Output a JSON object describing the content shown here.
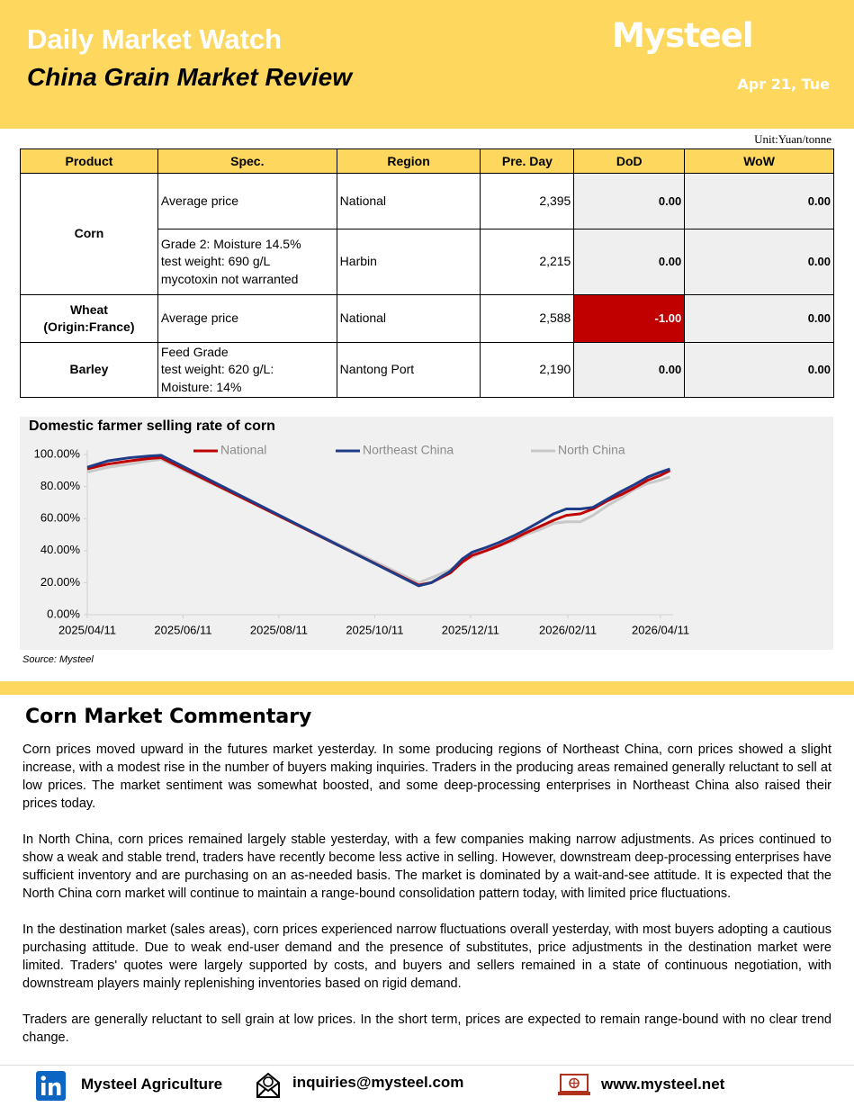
{
  "header": {
    "title": "Daily Market Watch",
    "subtitle": "China Grain Market Review",
    "brand": "Mysteel",
    "date": "Apr 21, Tue"
  },
  "table": {
    "unit": "Unit:Yuan/tonne",
    "columns": [
      "Product",
      "Spec.",
      "Region",
      "Pre. Day",
      "DoD",
      "WoW"
    ],
    "groups": [
      {
        "product": [
          "Corn"
        ],
        "rows": [
          {
            "spec": [
              "Average price"
            ],
            "region": "National",
            "pre_day": "2,395",
            "dod": "0.00",
            "wow": "0.00"
          },
          {
            "spec": [
              "Grade 2: Moisture 14.5%",
              "test weight: 690 g/L",
              "mycotoxin not warranted"
            ],
            "region": "Harbin",
            "pre_day": "2,215",
            "dod": "0.00",
            "wow": "0.00"
          }
        ]
      },
      {
        "product": [
          "Wheat",
          "(Origin:France)"
        ],
        "rows": [
          {
            "spec": [
              "Average price"
            ],
            "region": "National",
            "pre_day": "2,588",
            "dod": "-1.00",
            "wow": "0.00",
            "dod_color": "#c00000"
          }
        ]
      },
      {
        "product": [
          "Barley"
        ],
        "rows": [
          {
            "spec": [
              "Feed Grade",
              "test weight: 620 g/L:",
              "Moisture: 14%"
            ],
            "region": "Nantong Port",
            "pre_day": "2,190",
            "dod": "0.00",
            "wow": "0.00"
          }
        ]
      }
    ]
  },
  "chart_data": {
    "type": "line",
    "title": "Domestic farmer selling rate of corn",
    "source": "Source: Mysteel",
    "legend": "top",
    "x": [
      "2025/04/11",
      "2025/04/24",
      "2025/05/08",
      "2025/05/20",
      "2025/05/28",
      "2025/11/08",
      "2025/11/16",
      "2025/11/28",
      "2025/12/06",
      "2025/12/12",
      "2025/12/21",
      "2025/12/29",
      "2026/01/07",
      "2026/01/15",
      "2026/01/24",
      "2026/02/02",
      "2026/02/10",
      "2026/02/19",
      "2026/02/27",
      "2026/03/08",
      "2026/03/17",
      "2026/03/25",
      "2026/04/03",
      "2026/04/11",
      "2026/04/17"
    ],
    "series": [
      {
        "name": "National",
        "color": "#c00000",
        "values": [
          91,
          94,
          96,
          97.5,
          98,
          18.5,
          20,
          26,
          33,
          37,
          40,
          43,
          47,
          51,
          55,
          59,
          62,
          63,
          66,
          71,
          75,
          79,
          84,
          87,
          90
        ]
      },
      {
        "name": "Northeast China",
        "color": "#1f3c88",
        "values": [
          92,
          96,
          98,
          99,
          99.5,
          18,
          20,
          27,
          35,
          39,
          42,
          45,
          49,
          53,
          58,
          63,
          66,
          66,
          67,
          72,
          77,
          81,
          86,
          89,
          91
        ]
      },
      {
        "name": "North China",
        "color": "#c8c8c8",
        "values": [
          89,
          92,
          94,
          96,
          97,
          20,
          23,
          28,
          33,
          36,
          40,
          43,
          46,
          50,
          53,
          57,
          58,
          58,
          62,
          68,
          73,
          78,
          82,
          84,
          86
        ]
      }
    ],
    "xlim": [
      "2025/04/11",
      "2026/04/19"
    ],
    "xticks": [
      "2025/04/11",
      "2025/06/11",
      "2025/08/11",
      "2025/10/11",
      "2025/12/11",
      "2026/02/11",
      "2026/04/11"
    ],
    "ylim": [
      0,
      100
    ],
    "yticks": [
      {
        "value": 0,
        "label": "0.00%"
      },
      {
        "value": 20,
        "label": "20.00%"
      },
      {
        "value": 40,
        "label": "40.00%"
      },
      {
        "value": 60,
        "label": "60.00%"
      },
      {
        "value": 80,
        "label": "80.00%"
      },
      {
        "value": 100,
        "label": "100.00%"
      }
    ],
    "grid": false
  },
  "commentary": {
    "heading": "Corn Market Commentary",
    "paragraphs": [
      "Corn prices moved upward in the futures market yesterday. In some producing regions of Northeast China, corn prices showed a slight increase, with a modest rise in the number of buyers making inquiries. Traders in the producing areas remained generally reluctant to sell at low prices. The market sentiment was somewhat boosted, and some deep-processing enterprises in Northeast China also raised their prices today.",
      "In North China, corn prices remained largely stable yesterday, with a few companies making narrow adjustments. As prices continued to show a weak and stable trend, traders have recently become less active in selling. However, downstream deep-processing enterprises have sufficient inventory and are purchasing on an as-needed basis. The market is dominated by a wait-and-see attitude. It is expected that the North China corn market will continue to maintain a range-bound consolidation pattern today, with limited price fluctuations.",
      "In the destination market (sales areas), corn prices experienced narrow fluctuations overall yesterday, with most buyers adopting a cautious purchasing attitude. Due to weak end-user demand and the presence of substitutes, price adjustments in the destination market were limited. Traders' quotes were largely supported by costs, and buyers and sellers remained in a state of continuous negotiation, with downstream players mainly replenishing inventories based on rigid demand.",
      "Traders are generally reluctant to sell grain at low prices. In the short term, prices are expected to remain range-bound with no clear trend change."
    ]
  },
  "footer": {
    "contacts": [
      "Mysteel Agriculture",
      "inquiries@mysteel.com",
      "www.mysteel.net"
    ]
  }
}
